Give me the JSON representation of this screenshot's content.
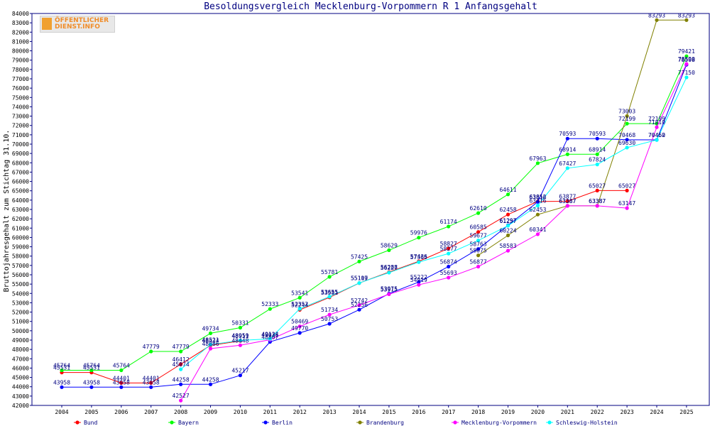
{
  "logo": {
    "line1": "ÖFFENTLICHER",
    "line2": "DIENST.INFO"
  },
  "chart_data": {
    "type": "line",
    "title": "Besoldungsvergleich Mecklenburg-Vorpommern R 1 Anfangsgehalt",
    "xlabel": "",
    "ylabel": "Bruttojahresgehalt zum Stichtag 31.10.",
    "ylim": [
      42000,
      84000
    ],
    "ytick_step": 1000,
    "grid": false,
    "legend_position": "bottom",
    "categories": [
      "2004",
      "2005",
      "2006",
      "2007",
      "2008",
      "2009",
      "2010",
      "2011",
      "2012",
      "2013",
      "2014",
      "2015",
      "2016",
      "2017",
      "2018",
      "2019",
      "2020",
      "2021",
      "2022",
      "2023",
      "2024",
      "2025"
    ],
    "series": [
      {
        "name": "Bund",
        "color": "#ff0000",
        "values": [
          45531,
          45531,
          44401,
          44401,
          46412,
          48434,
          48911,
          null,
          52244,
          53581,
          55107,
          56288,
          57436,
          58827,
          60585,
          62458,
          63852,
          63877,
          65027,
          65027,
          null,
          null
        ]
      },
      {
        "name": "Bayern",
        "color": "#00ff00",
        "values": [
          45764,
          45764,
          45764,
          47779,
          47779,
          49734,
          50331,
          52333,
          53541,
          55781,
          57425,
          58629,
          59976,
          61174,
          62610,
          64611,
          67963,
          68914,
          68914,
          72199,
          72199,
          79421
        ]
      },
      {
        "name": "Berlin",
        "color": "#0000ff",
        "values": [
          43958,
          43958,
          43958,
          43958,
          44258,
          44258,
          45217,
          48807,
          49770,
          50753,
          52256,
          53975,
          55222,
          56874,
          58763,
          61297,
          63816,
          70593,
          70593,
          70468,
          70460,
          78508
        ]
      },
      {
        "name": "Brandenburg",
        "color": "#808000",
        "values": [
          null,
          null,
          null,
          null,
          null,
          null,
          null,
          null,
          null,
          null,
          null,
          null,
          null,
          null,
          58075,
          60224,
          62453,
          63387,
          63387,
          73003,
          83293,
          83293
        ]
      },
      {
        "name": "Mecklenburg-Vorpommern",
        "color": "#ff00ff",
        "values": [
          null,
          null,
          null,
          null,
          42527,
          48086,
          48448,
          49036,
          50469,
          51734,
          52742,
          53915,
          54919,
          55693,
          56877,
          58583,
          60341,
          63387,
          63387,
          63147,
          71810,
          78590
        ]
      },
      {
        "name": "Schleswig-Holstein",
        "color": "#00ffff",
        "values": [
          null,
          null,
          null,
          null,
          45874,
          48521,
          48959,
          49133,
          52352,
          53655,
          55119,
          56227,
          57365,
          58277,
          59677,
          61257,
          63416,
          67427,
          67824,
          69630,
          70452,
          77150
        ]
      }
    ]
  }
}
